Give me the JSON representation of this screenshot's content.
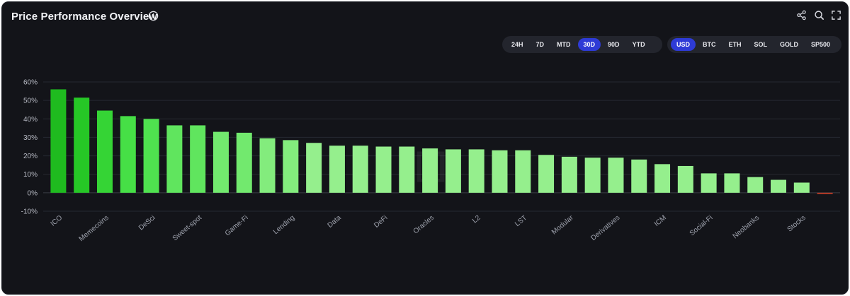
{
  "header": {
    "title": "Price Performance Overview"
  },
  "toolbar": {
    "icons": [
      "share-icon",
      "search-icon",
      "fullscreen-icon"
    ]
  },
  "timeframes": {
    "options": [
      "24H",
      "7D",
      "MTD",
      "30D",
      "90D",
      "YTD"
    ],
    "selected": "30D"
  },
  "currencies": {
    "options": [
      "USD",
      "BTC",
      "ETH",
      "SOL",
      "GOLD",
      "SP500"
    ],
    "selected": "USD"
  },
  "chart_data": {
    "type": "bar",
    "ylim": [
      -10,
      60
    ],
    "yticks": [
      "60%",
      "50%",
      "40%",
      "30%",
      "20%",
      "10%",
      "0%",
      "-10%"
    ],
    "ytick_values": [
      60,
      50,
      40,
      30,
      20,
      10,
      0,
      -10
    ],
    "grid": true,
    "categories": [
      "ICO",
      "",
      "Memecoins",
      "",
      "DeSci",
      "",
      "Sweet-spot",
      "",
      "Game-Fi",
      "",
      "Lending",
      "",
      "Data",
      "",
      "DeFi",
      "",
      "Oracles",
      "",
      "L2",
      "",
      "LST",
      "",
      "Modular",
      "",
      "Derivatives",
      "",
      "ICM",
      "",
      "Social-Fi",
      "",
      "Neobanks",
      "",
      "Stocks",
      ""
    ],
    "values": [
      56,
      51.5,
      44.5,
      41.5,
      40,
      36.5,
      36.5,
      33,
      32.5,
      29.5,
      28.5,
      27,
      25.5,
      25.5,
      25,
      25,
      24,
      23.5,
      23.5,
      23,
      23,
      20.5,
      19.5,
      19,
      19,
      18,
      15.5,
      14.5,
      10.5,
      10.5,
      8.5,
      7,
      5.5,
      -0.4
    ],
    "colors": {
      "strong_positive": "#1fbb1f",
      "mid_positive": "#3fde3f",
      "light_positive": "#95ef8d",
      "negative": "#e0452b",
      "grid": "#262831",
      "zero_line": "#3a3c45"
    }
  }
}
